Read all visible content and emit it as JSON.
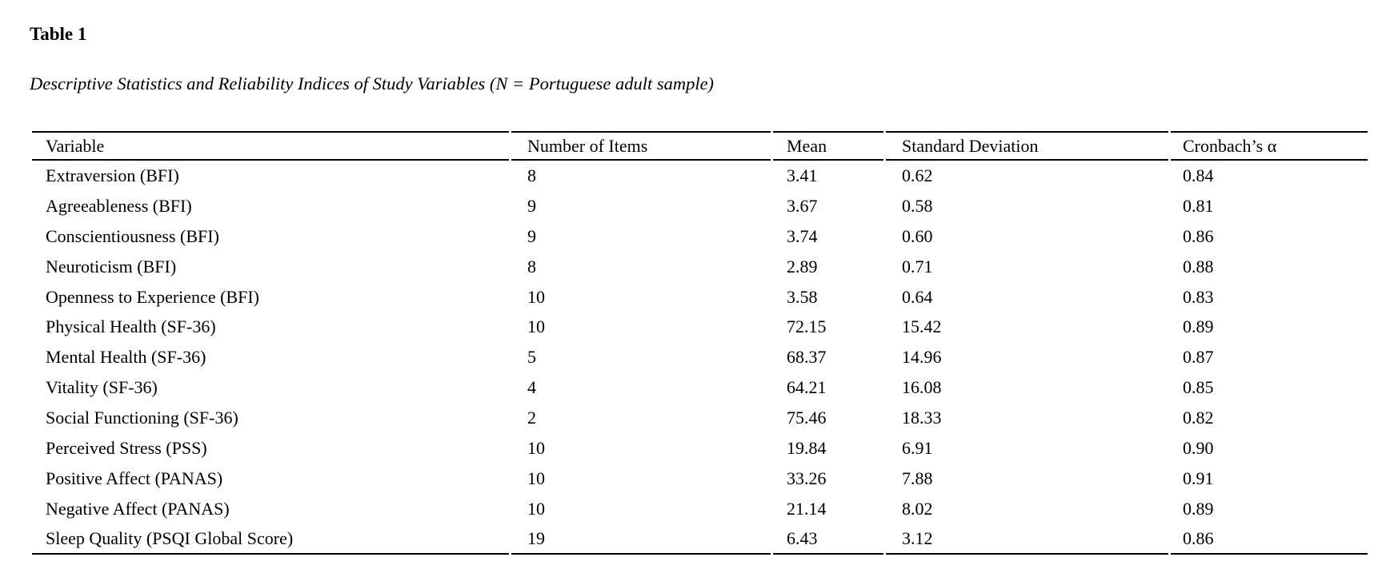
{
  "page": {
    "table_label": "Table 1",
    "table_caption": "Descriptive Statistics and Reliability Indices of Study Variables (N = Portuguese adult sample)"
  },
  "table": {
    "columns": [
      "Variable",
      "Number of Items",
      "Mean",
      "Standard Deviation",
      "Cronbach’s α"
    ],
    "column_keys": [
      "variable",
      "number_of_items",
      "mean",
      "standard_deviation",
      "cronbachs_alpha"
    ],
    "rows": [
      {
        "variable": "Extraversion (BFI)",
        "number_of_items": "8",
        "mean": "3.41",
        "standard_deviation": "0.62",
        "cronbachs_alpha": "0.84"
      },
      {
        "variable": "Agreeableness (BFI)",
        "number_of_items": "9",
        "mean": "3.67",
        "standard_deviation": "0.58",
        "cronbachs_alpha": "0.81"
      },
      {
        "variable": "Conscientiousness (BFI)",
        "number_of_items": "9",
        "mean": "3.74",
        "standard_deviation": "0.60",
        "cronbachs_alpha": "0.86"
      },
      {
        "variable": "Neuroticism (BFI)",
        "number_of_items": "8",
        "mean": "2.89",
        "standard_deviation": "0.71",
        "cronbachs_alpha": "0.88"
      },
      {
        "variable": "Openness to Experience (BFI)",
        "number_of_items": "10",
        "mean": "3.58",
        "standard_deviation": "0.64",
        "cronbachs_alpha": "0.83"
      },
      {
        "variable": "Physical Health (SF-36)",
        "number_of_items": "10",
        "mean": "72.15",
        "standard_deviation": "15.42",
        "cronbachs_alpha": "0.89"
      },
      {
        "variable": "Mental Health (SF-36)",
        "number_of_items": "5",
        "mean": "68.37",
        "standard_deviation": "14.96",
        "cronbachs_alpha": "0.87"
      },
      {
        "variable": "Vitality (SF-36)",
        "number_of_items": "4",
        "mean": "64.21",
        "standard_deviation": "16.08",
        "cronbachs_alpha": "0.85"
      },
      {
        "variable": "Social Functioning (SF-36)",
        "number_of_items": "2",
        "mean": "75.46",
        "standard_deviation": "18.33",
        "cronbachs_alpha": "0.82"
      },
      {
        "variable": "Perceived Stress (PSS)",
        "number_of_items": "10",
        "mean": "19.84",
        "standard_deviation": "6.91",
        "cronbachs_alpha": "0.90"
      },
      {
        "variable": "Positive Affect (PANAS)",
        "number_of_items": "10",
        "mean": "33.26",
        "standard_deviation": "7.88",
        "cronbachs_alpha": "0.91"
      },
      {
        "variable": "Negative Affect (PANAS)",
        "number_of_items": "10",
        "mean": "21.14",
        "standard_deviation": "8.02",
        "cronbachs_alpha": "0.89"
      },
      {
        "variable": "Sleep Quality (PSQI Global Score)",
        "number_of_items": "19",
        "mean": "6.43",
        "standard_deviation": "3.12",
        "cronbachs_alpha": "0.86"
      }
    ]
  },
  "colors": {
    "background": "#ffffff",
    "text": "#000000",
    "rule": "#000000"
  }
}
